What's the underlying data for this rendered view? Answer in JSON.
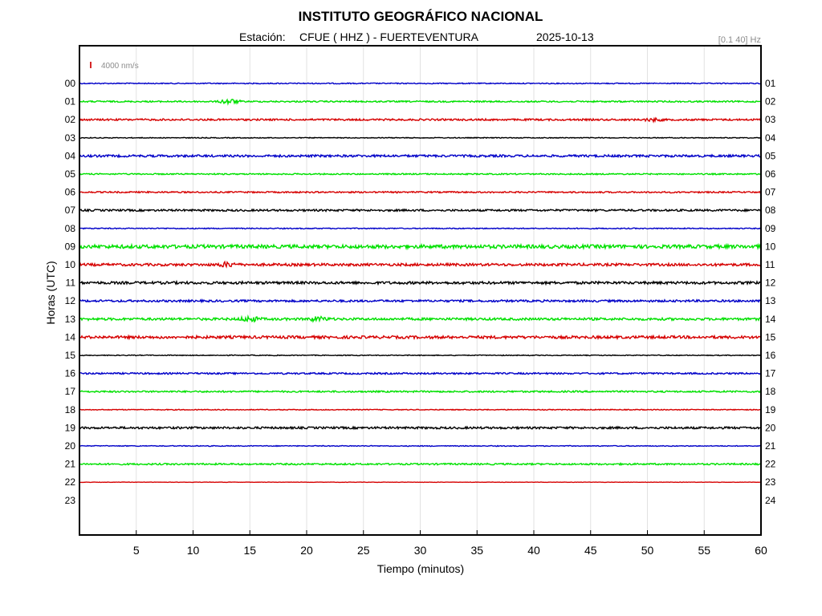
{
  "header": {
    "title": "INSTITUTO GEOGRÁFICO NACIONAL",
    "station_prefix": "Estación:",
    "station": "CFUE ( HHZ ) - FUERTEVENTURA",
    "date": "2025-10-13",
    "filter": "[0.1 40] Hz"
  },
  "scale": {
    "label": "4000 nm/s",
    "color": "#d62728"
  },
  "chart_data": {
    "type": "line",
    "xlabel": "Tiempo (minutos)",
    "ylabel": "Horas (UTC)",
    "xlim": [
      0,
      60
    ],
    "x_ticks": [
      "5",
      "10",
      "15",
      "20",
      "25",
      "30",
      "35",
      "40",
      "45",
      "50",
      "55",
      "60"
    ],
    "left_ticks": [
      "00",
      "01",
      "02",
      "03",
      "04",
      "05",
      "06",
      "07",
      "08",
      "09",
      "10",
      "11",
      "12",
      "13",
      "14",
      "15",
      "16",
      "17",
      "18",
      "19",
      "20",
      "21",
      "22",
      "23"
    ],
    "right_ticks": [
      "01",
      "02",
      "03",
      "04",
      "05",
      "06",
      "07",
      "08",
      "09",
      "10",
      "11",
      "12",
      "13",
      "14",
      "15",
      "16",
      "17",
      "18",
      "19",
      "20",
      "21",
      "22",
      "23",
      "24"
    ],
    "color_cycle": [
      "#0000c8",
      "#00e000",
      "#d60000",
      "#000000"
    ],
    "traces": [
      {
        "hour": "00",
        "color": "#0000c8",
        "end_minute": 60,
        "amplitude": 0.6
      },
      {
        "hour": "01",
        "color": "#00e000",
        "end_minute": 60,
        "amplitude": 0.9,
        "events": [
          {
            "minute": 13.2,
            "amplitude": 3
          }
        ]
      },
      {
        "hour": "02",
        "color": "#d60000",
        "end_minute": 60,
        "amplitude": 1.1,
        "events": [
          {
            "minute": 50.5,
            "amplitude": 1.6
          }
        ]
      },
      {
        "hour": "03",
        "color": "#000000",
        "end_minute": 60,
        "amplitude": 0.5
      },
      {
        "hour": "04",
        "color": "#0000c8",
        "end_minute": 60,
        "amplitude": 1.4
      },
      {
        "hour": "05",
        "color": "#00e000",
        "end_minute": 60,
        "amplitude": 0.8
      },
      {
        "hour": "06",
        "color": "#d60000",
        "end_minute": 60,
        "amplitude": 0.9
      },
      {
        "hour": "07",
        "color": "#000000",
        "end_minute": 60,
        "amplitude": 1.2
      },
      {
        "hour": "08",
        "color": "#0000c8",
        "end_minute": 60,
        "amplitude": 0.6
      },
      {
        "hour": "09",
        "color": "#00e000",
        "end_minute": 60,
        "amplitude": 2.2
      },
      {
        "hour": "10",
        "color": "#d60000",
        "end_minute": 60,
        "amplitude": 1.6,
        "events": [
          {
            "minute": 13,
            "amplitude": 2.5
          }
        ]
      },
      {
        "hour": "11",
        "color": "#000000",
        "end_minute": 60,
        "amplitude": 1.6
      },
      {
        "hour": "12",
        "color": "#0000c8",
        "end_minute": 60,
        "amplitude": 1.3
      },
      {
        "hour": "13",
        "color": "#00e000",
        "end_minute": 60,
        "amplitude": 1.5,
        "events": [
          {
            "minute": 15,
            "amplitude": 3
          },
          {
            "minute": 21,
            "amplitude": 2.5
          }
        ]
      },
      {
        "hour": "14",
        "color": "#d60000",
        "end_minute": 60,
        "amplitude": 1.7
      },
      {
        "hour": "15",
        "color": "#000000",
        "end_minute": 60,
        "amplitude": 0.5
      },
      {
        "hour": "16",
        "color": "#0000c8",
        "end_minute": 60,
        "amplitude": 1.0
      },
      {
        "hour": "17",
        "color": "#00e000",
        "end_minute": 60,
        "amplitude": 1.0
      },
      {
        "hour": "18",
        "color": "#d60000",
        "end_minute": 60,
        "amplitude": 0.5
      },
      {
        "hour": "19",
        "color": "#000000",
        "end_minute": 60,
        "amplitude": 1.3
      },
      {
        "hour": "20",
        "color": "#0000c8",
        "end_minute": 60,
        "amplitude": 0.5
      },
      {
        "hour": "21",
        "color": "#00e000",
        "end_minute": 60,
        "amplitude": 1.0
      },
      {
        "hour": "22",
        "color": "#d60000",
        "end_minute": 60,
        "amplitude": 0.2
      }
    ],
    "grid": true
  }
}
